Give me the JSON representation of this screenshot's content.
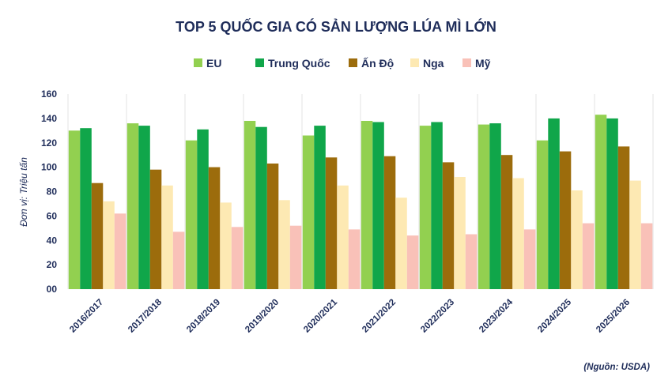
{
  "chart_data": {
    "type": "bar",
    "title": "TOP 5 QUỐC GIA CÓ SẢN LƯỢNG LÚA MÌ LỚN",
    "ylabel": "Đơn vị: Triệu tấn",
    "source": "(Nguồn: USDA)",
    "ylim": [
      0,
      160
    ],
    "yticks": [
      "00",
      "20",
      "40",
      "60",
      "80",
      "100",
      "120",
      "140",
      "160"
    ],
    "legend_position": "top-center",
    "grid": "vertical separators",
    "categories": [
      "2016/2017",
      "2017/2018",
      "2018/2019",
      "2019/2020",
      "2020/2021",
      "2021/2022",
      "2022/2023",
      "2023/2024",
      "2024/2025",
      "2025/2026"
    ],
    "series": [
      {
        "name": "EU",
        "color": "#92d050",
        "values": [
          130,
          136,
          122,
          138,
          126,
          138,
          134,
          135,
          122,
          143
        ]
      },
      {
        "name": "Trung Quốc",
        "color": "#10a64a",
        "values": [
          132,
          134,
          131,
          133,
          134,
          137,
          137,
          136,
          140,
          140
        ]
      },
      {
        "name": "Ấn Độ",
        "color": "#9c6c0c",
        "values": [
          87,
          98,
          100,
          103,
          108,
          109,
          104,
          110,
          113,
          117
        ]
      },
      {
        "name": "Nga",
        "color": "#fde9b3",
        "values": [
          72,
          85,
          71,
          73,
          85,
          75,
          92,
          91,
          81,
          89
        ]
      },
      {
        "name": "Mỹ",
        "color": "#f9c1b8",
        "values": [
          62,
          47,
          51,
          52,
          49,
          44,
          45,
          49,
          54,
          54
        ]
      }
    ]
  }
}
